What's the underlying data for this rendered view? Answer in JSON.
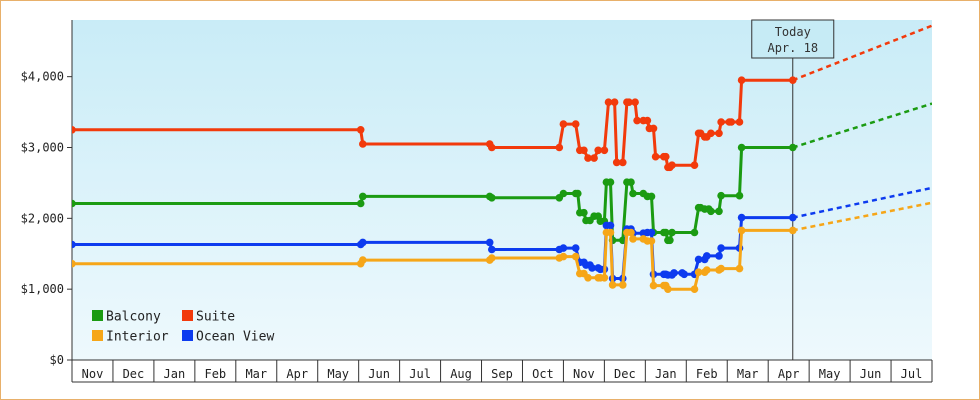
{
  "chart_data": {
    "type": "line",
    "title": "",
    "xlabel": "",
    "ylabel": "",
    "ylim": [
      0,
      4800
    ],
    "y_ticks": [
      {
        "value": 0,
        "label": "$0"
      },
      {
        "value": 1000,
        "label": "$1,000"
      },
      {
        "value": 2000,
        "label": "$2,000"
      },
      {
        "value": 3000,
        "label": "$3,000"
      },
      {
        "value": 4000,
        "label": "$4,000"
      }
    ],
    "month_labels": [
      "Nov",
      "Dec",
      "Jan",
      "Feb",
      "Mar",
      "Apr",
      "May",
      "Jun",
      "Jul",
      "Aug",
      "Sep",
      "Oct",
      "Nov",
      "Dec",
      "Jan",
      "Feb",
      "Mar",
      "Apr",
      "May",
      "Jun",
      "Jul"
    ],
    "x_range": [
      0,
      21
    ],
    "today": {
      "line1": "Today",
      "line2": "Apr. 18",
      "x": 17.6
    },
    "legend": {
      "placement": "bottom-left"
    },
    "series": [
      {
        "name": "Suite",
        "color": "#f23a0c",
        "points": [
          [
            0.0,
            3250
          ],
          [
            7.05,
            3250
          ],
          [
            7.1,
            3050
          ],
          [
            10.2,
            3050
          ],
          [
            10.25,
            3000
          ],
          [
            11.9,
            3000
          ],
          [
            12.0,
            3330
          ],
          [
            12.3,
            3330
          ],
          [
            12.4,
            2960
          ],
          [
            12.5,
            2960
          ],
          [
            12.6,
            2850
          ],
          [
            12.75,
            2850
          ],
          [
            12.85,
            2960
          ],
          [
            13.0,
            2960
          ],
          [
            13.1,
            3640
          ],
          [
            13.25,
            3640
          ],
          [
            13.3,
            2790
          ],
          [
            13.45,
            2790
          ],
          [
            13.55,
            3640
          ],
          [
            13.6,
            3640
          ],
          [
            13.75,
            3640
          ],
          [
            13.8,
            3380
          ],
          [
            13.95,
            3380
          ],
          [
            14.05,
            3380
          ],
          [
            14.1,
            3270
          ],
          [
            14.2,
            3270
          ],
          [
            14.25,
            2870
          ],
          [
            14.45,
            2870
          ],
          [
            14.5,
            2870
          ],
          [
            14.55,
            2720
          ],
          [
            14.6,
            2720
          ],
          [
            14.65,
            2750
          ],
          [
            15.2,
            2750
          ],
          [
            15.3,
            3200
          ],
          [
            15.35,
            3200
          ],
          [
            15.45,
            3150
          ],
          [
            15.5,
            3150
          ],
          [
            15.6,
            3200
          ],
          [
            15.8,
            3200
          ],
          [
            15.85,
            3360
          ],
          [
            16.05,
            3360
          ],
          [
            16.1,
            3360
          ],
          [
            16.3,
            3360
          ],
          [
            16.35,
            3950
          ],
          [
            17.6,
            3950
          ]
        ],
        "forecast": [
          [
            17.6,
            3950
          ],
          [
            21.0,
            4720
          ]
        ]
      },
      {
        "name": "Balcony",
        "color": "#1b9b12",
        "points": [
          [
            0.0,
            2210
          ],
          [
            7.05,
            2210
          ],
          [
            7.1,
            2310
          ],
          [
            10.2,
            2310
          ],
          [
            10.25,
            2290
          ],
          [
            11.9,
            2290
          ],
          [
            12.0,
            2350
          ],
          [
            12.3,
            2350
          ],
          [
            12.35,
            2350
          ],
          [
            12.4,
            2080
          ],
          [
            12.5,
            2080
          ],
          [
            12.55,
            1970
          ],
          [
            12.65,
            1970
          ],
          [
            12.75,
            2030
          ],
          [
            12.85,
            2030
          ],
          [
            12.9,
            1960
          ],
          [
            13.0,
            1960
          ],
          [
            13.05,
            2510
          ],
          [
            13.15,
            2510
          ],
          [
            13.2,
            1690
          ],
          [
            13.45,
            1690
          ],
          [
            13.55,
            2510
          ],
          [
            13.65,
            2510
          ],
          [
            13.7,
            2350
          ],
          [
            13.95,
            2350
          ],
          [
            14.05,
            2310
          ],
          [
            14.15,
            2310
          ],
          [
            14.2,
            1800
          ],
          [
            14.45,
            1800
          ],
          [
            14.5,
            1800
          ],
          [
            14.55,
            1690
          ],
          [
            14.6,
            1690
          ],
          [
            14.65,
            1800
          ],
          [
            15.2,
            1800
          ],
          [
            15.3,
            2150
          ],
          [
            15.35,
            2150
          ],
          [
            15.45,
            2130
          ],
          [
            15.55,
            2130
          ],
          [
            15.6,
            2100
          ],
          [
            15.8,
            2100
          ],
          [
            15.85,
            2320
          ],
          [
            16.3,
            2320
          ],
          [
            16.35,
            3000
          ],
          [
            17.6,
            3000
          ]
        ],
        "forecast": [
          [
            17.6,
            3000
          ],
          [
            21.0,
            3620
          ]
        ]
      },
      {
        "name": "Ocean View",
        "color": "#0d3bef",
        "points": [
          [
            0.0,
            1630
          ],
          [
            7.05,
            1630
          ],
          [
            7.1,
            1660
          ],
          [
            10.2,
            1660
          ],
          [
            10.25,
            1560
          ],
          [
            11.9,
            1560
          ],
          [
            12.0,
            1580
          ],
          [
            12.3,
            1580
          ],
          [
            12.4,
            1380
          ],
          [
            12.5,
            1380
          ],
          [
            12.55,
            1340
          ],
          [
            12.65,
            1340
          ],
          [
            12.7,
            1300
          ],
          [
            12.85,
            1300
          ],
          [
            12.9,
            1280
          ],
          [
            13.0,
            1280
          ],
          [
            13.05,
            1900
          ],
          [
            13.15,
            1900
          ],
          [
            13.2,
            1150
          ],
          [
            13.45,
            1150
          ],
          [
            13.55,
            1850
          ],
          [
            13.65,
            1850
          ],
          [
            13.7,
            1790
          ],
          [
            13.95,
            1790
          ],
          [
            14.05,
            1800
          ],
          [
            14.15,
            1800
          ],
          [
            14.2,
            1210
          ],
          [
            14.45,
            1210
          ],
          [
            14.5,
            1210
          ],
          [
            14.55,
            1200
          ],
          [
            14.65,
            1200
          ],
          [
            14.7,
            1230
          ],
          [
            14.9,
            1230
          ],
          [
            14.95,
            1210
          ],
          [
            15.2,
            1210
          ],
          [
            15.3,
            1420
          ],
          [
            15.45,
            1420
          ],
          [
            15.5,
            1470
          ],
          [
            15.8,
            1470
          ],
          [
            15.85,
            1580
          ],
          [
            16.3,
            1580
          ],
          [
            16.35,
            2010
          ],
          [
            17.6,
            2010
          ]
        ],
        "forecast": [
          [
            17.6,
            2010
          ],
          [
            21.0,
            2430
          ]
        ]
      },
      {
        "name": "Interior",
        "color": "#f6a618",
        "points": [
          [
            0.0,
            1360
          ],
          [
            7.05,
            1360
          ],
          [
            7.1,
            1410
          ],
          [
            10.2,
            1410
          ],
          [
            10.25,
            1440
          ],
          [
            11.9,
            1440
          ],
          [
            12.0,
            1460
          ],
          [
            12.3,
            1460
          ],
          [
            12.4,
            1220
          ],
          [
            12.5,
            1220
          ],
          [
            12.6,
            1160
          ],
          [
            12.85,
            1160
          ],
          [
            12.9,
            1160
          ],
          [
            13.0,
            1160
          ],
          [
            13.05,
            1800
          ],
          [
            13.15,
            1800
          ],
          [
            13.2,
            1060
          ],
          [
            13.45,
            1060
          ],
          [
            13.55,
            1800
          ],
          [
            13.65,
            1800
          ],
          [
            13.7,
            1710
          ],
          [
            13.95,
            1710
          ],
          [
            14.05,
            1680
          ],
          [
            14.15,
            1680
          ],
          [
            14.2,
            1050
          ],
          [
            14.45,
            1050
          ],
          [
            14.5,
            1050
          ],
          [
            14.55,
            1000
          ],
          [
            15.2,
            1000
          ],
          [
            15.3,
            1240
          ],
          [
            15.45,
            1240
          ],
          [
            15.5,
            1270
          ],
          [
            15.8,
            1270
          ],
          [
            15.85,
            1290
          ],
          [
            16.3,
            1290
          ],
          [
            16.35,
            1830
          ],
          [
            17.6,
            1830
          ]
        ],
        "forecast": [
          [
            17.6,
            1830
          ],
          [
            21.0,
            2220
          ]
        ]
      }
    ],
    "legend_order": [
      "Balcony",
      "Suite",
      "Interior",
      "Ocean View"
    ]
  }
}
